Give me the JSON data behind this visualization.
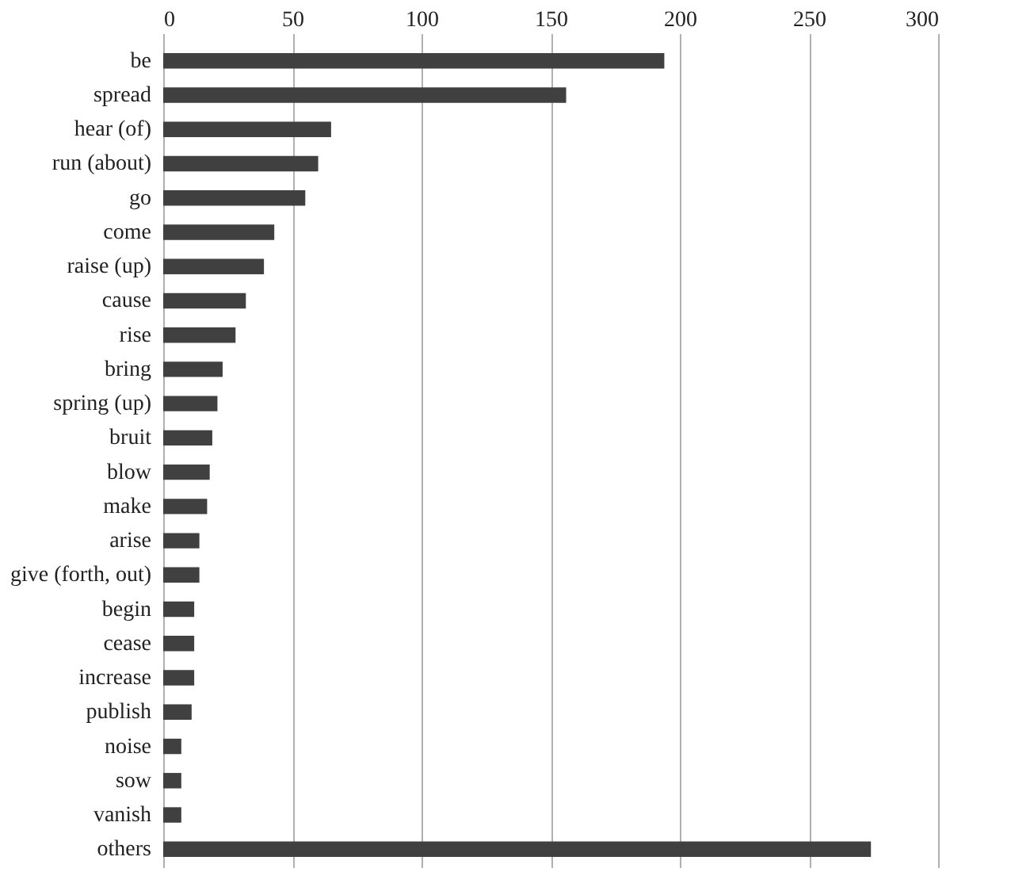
{
  "chart_data": {
    "type": "bar",
    "orientation": "horizontal",
    "categories": [
      "be",
      "spread",
      "hear (of)",
      "run (about)",
      "go",
      "come",
      "raise (up)",
      "cause",
      "rise",
      "bring",
      "spring (up)",
      "bruit",
      "blow",
      "make",
      "arise",
      "give (forth, out)",
      "begin",
      "cease",
      "increase",
      "publish",
      "noise",
      "sow",
      "vanish",
      "others"
    ],
    "values": [
      194,
      156,
      65,
      60,
      55,
      43,
      39,
      32,
      28,
      23,
      21,
      19,
      18,
      17,
      14,
      14,
      12,
      12,
      12,
      11,
      7,
      7,
      7,
      274
    ],
    "color": "#404040",
    "xlim": [
      0,
      300
    ],
    "xticks": [
      0,
      50,
      100,
      150,
      200,
      250,
      300
    ],
    "grid": "x"
  }
}
